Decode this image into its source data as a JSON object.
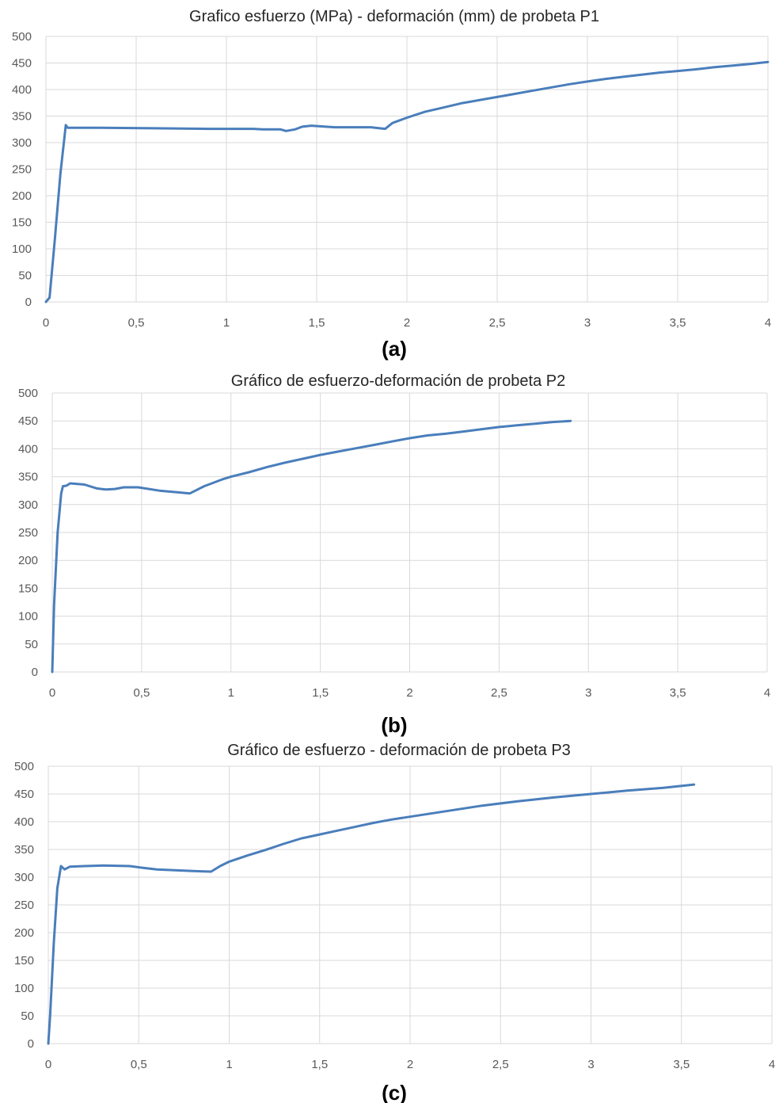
{
  "colors": {
    "series": "#4a7ebb",
    "grid": "#d9d9d9",
    "tick_text": "#595959",
    "title_text": "#262626"
  },
  "chart_data": [
    {
      "type": "line",
      "title": "Grafico esfuerzo (MPa) - deformación (mm) de probeta P1",
      "panel_label": "(a)",
      "xlabel": "",
      "ylabel": "",
      "xlim": [
        0,
        4
      ],
      "ylim": [
        0,
        500
      ],
      "x_ticks": [
        "0",
        "0,5",
        "1",
        "1,5",
        "2",
        "2,5",
        "3",
        "3,5",
        "4"
      ],
      "y_ticks": [
        "0",
        "50",
        "100",
        "150",
        "200",
        "250",
        "300",
        "350",
        "400",
        "450",
        "500"
      ],
      "grid": true,
      "legend": "none",
      "series": [
        {
          "x": [
            0,
            0.02,
            0.05,
            0.08,
            0.11,
            0.12,
            0.3,
            0.6,
            0.9,
            1.15,
            1.2,
            1.3,
            1.33,
            1.38,
            1.42,
            1.47,
            1.6,
            1.8,
            1.88,
            1.92,
            2.0,
            2.1,
            2.2,
            2.3,
            2.4,
            2.5,
            2.6,
            2.7,
            2.8,
            2.9,
            3.0,
            3.1,
            3.2,
            3.3,
            3.4,
            3.5,
            3.6,
            3.7,
            3.8,
            3.9,
            4.0
          ],
          "y": [
            0,
            8,
            120,
            240,
            333,
            328,
            328,
            327,
            326,
            326,
            325,
            325,
            322,
            325,
            330,
            332,
            329,
            329,
            326,
            337,
            347,
            358,
            366,
            374,
            380,
            386,
            392,
            398,
            404,
            410,
            415,
            420,
            424,
            428,
            432,
            435,
            438,
            442,
            445,
            448,
            452
          ]
        }
      ]
    },
    {
      "type": "line",
      "title": "Gráfico de esfuerzo-deformación de probeta P2",
      "panel_label": "(b)",
      "xlabel": "",
      "ylabel": "",
      "xlim": [
        0,
        4
      ],
      "ylim": [
        0,
        500
      ],
      "x_ticks": [
        "0",
        "0,5",
        "1",
        "1,5",
        "2",
        "2,5",
        "3",
        "3,5",
        "4"
      ],
      "y_ticks": [
        "0",
        "50",
        "100",
        "150",
        "200",
        "250",
        "300",
        "350",
        "400",
        "450",
        "500"
      ],
      "grid": true,
      "legend": "none",
      "series": [
        {
          "x": [
            0,
            0.01,
            0.03,
            0.05,
            0.06,
            0.08,
            0.1,
            0.18,
            0.25,
            0.3,
            0.35,
            0.4,
            0.48,
            0.6,
            0.7,
            0.77,
            0.85,
            0.95,
            1.0,
            1.1,
            1.2,
            1.3,
            1.4,
            1.5,
            1.6,
            1.7,
            1.8,
            1.9,
            2.0,
            2.1,
            2.2,
            2.3,
            2.4,
            2.5,
            2.6,
            2.7,
            2.8,
            2.9
          ],
          "y": [
            0,
            120,
            250,
            320,
            333,
            334,
            338,
            336,
            329,
            327,
            328,
            331,
            331,
            325,
            322,
            320,
            333,
            345,
            350,
            358,
            367,
            375,
            382,
            389,
            395,
            401,
            407,
            413,
            419,
            424,
            427,
            431,
            435,
            439,
            442,
            445,
            448,
            450
          ]
        }
      ]
    },
    {
      "type": "line",
      "title": "Gráfico de esfuerzo - deformación de probeta P3",
      "panel_label": "(c)",
      "xlabel": "",
      "ylabel": "",
      "xlim": [
        0,
        4
      ],
      "ylim": [
        0,
        500
      ],
      "x_ticks": [
        "0",
        "0,5",
        "1",
        "1,5",
        "2",
        "2,5",
        "3",
        "3,5",
        "4"
      ],
      "y_ticks": [
        "0",
        "50",
        "100",
        "150",
        "200",
        "250",
        "300",
        "350",
        "400",
        "450",
        "500"
      ],
      "grid": true,
      "legend": "none",
      "series": [
        {
          "x": [
            0,
            0.01,
            0.03,
            0.05,
            0.07,
            0.09,
            0.12,
            0.2,
            0.3,
            0.45,
            0.52,
            0.6,
            0.8,
            0.9,
            0.95,
            1.0,
            1.1,
            1.2,
            1.3,
            1.4,
            1.5,
            1.6,
            1.7,
            1.8,
            1.9,
            2.0,
            2.2,
            2.4,
            2.6,
            2.8,
            3.0,
            3.2,
            3.4,
            3.57
          ],
          "y": [
            0,
            50,
            180,
            280,
            320,
            314,
            319,
            320,
            321,
            320,
            317,
            314,
            311,
            310,
            320,
            328,
            339,
            349,
            360,
            370,
            377,
            384,
            391,
            398,
            404,
            409,
            419,
            429,
            437,
            444,
            450,
            456,
            461,
            467
          ]
        }
      ]
    }
  ]
}
